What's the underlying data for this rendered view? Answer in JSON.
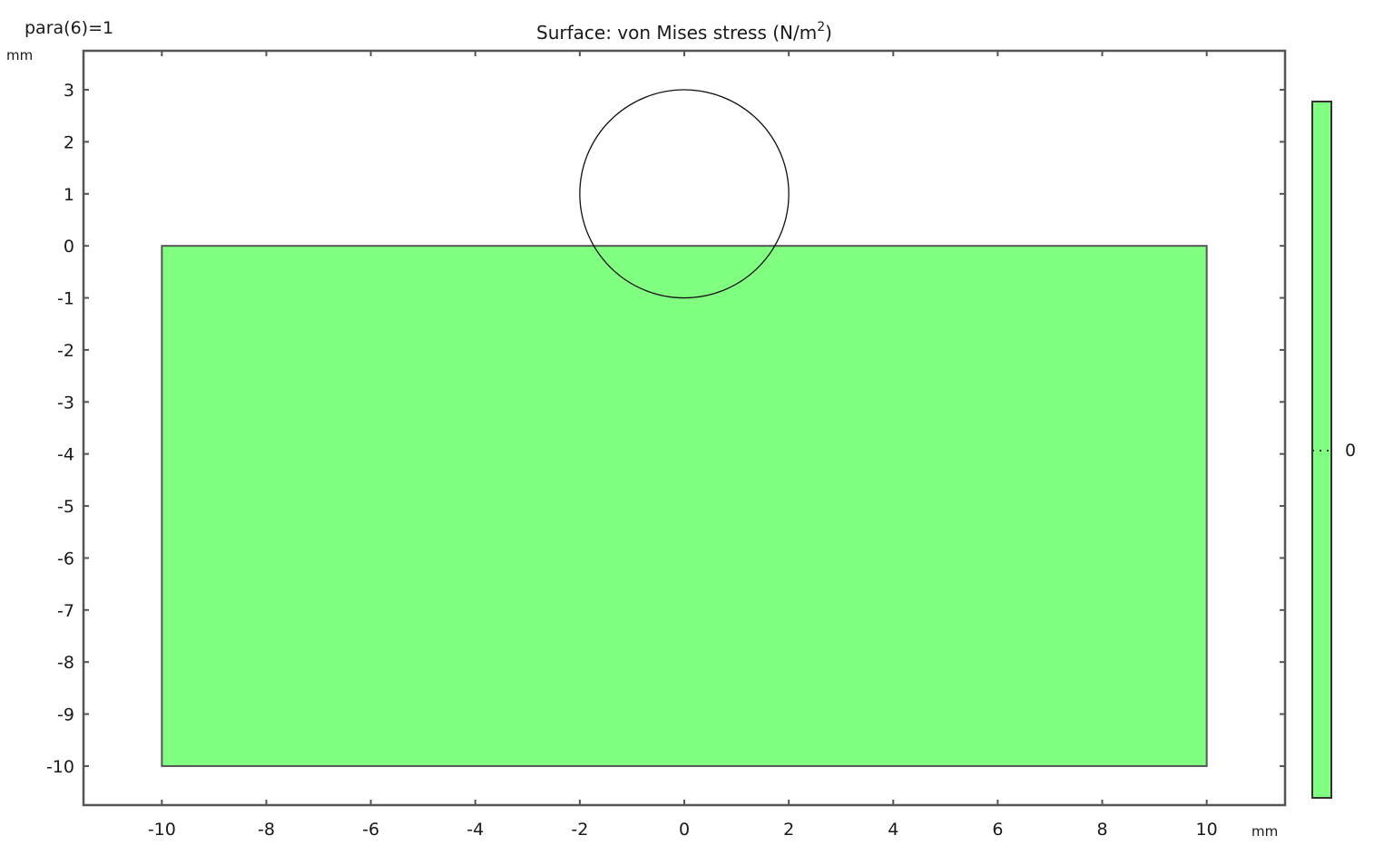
{
  "parameter_label": "para(6)=1",
  "chart_data": {
    "type": "heatmap",
    "title": "Surface: von Mises stress (N/m",
    "title_superscript": "2",
    "title_suffix": ")",
    "x_unit": "mm",
    "y_unit": "mm",
    "xlim": [
      -11.5,
      11.5
    ],
    "ylim": [
      -10.75,
      3.75
    ],
    "x_ticks": [
      -10,
      -8,
      -6,
      -4,
      -2,
      0,
      2,
      4,
      6,
      8,
      10
    ],
    "y_ticks": [
      3,
      2,
      1,
      0,
      -1,
      -2,
      -3,
      -4,
      -5,
      -6,
      -7,
      -8,
      -9,
      -10
    ],
    "domain_rect": {
      "x_min": -10,
      "x_max": 10,
      "y_min": -10,
      "y_max": 0
    },
    "circle": {
      "cx": 0,
      "cy": 1,
      "r": 2
    },
    "surface_value": 0,
    "fill_color": "#80ff80",
    "colorbar": {
      "label": "0",
      "color": "#80ff80"
    },
    "grid": false
  }
}
